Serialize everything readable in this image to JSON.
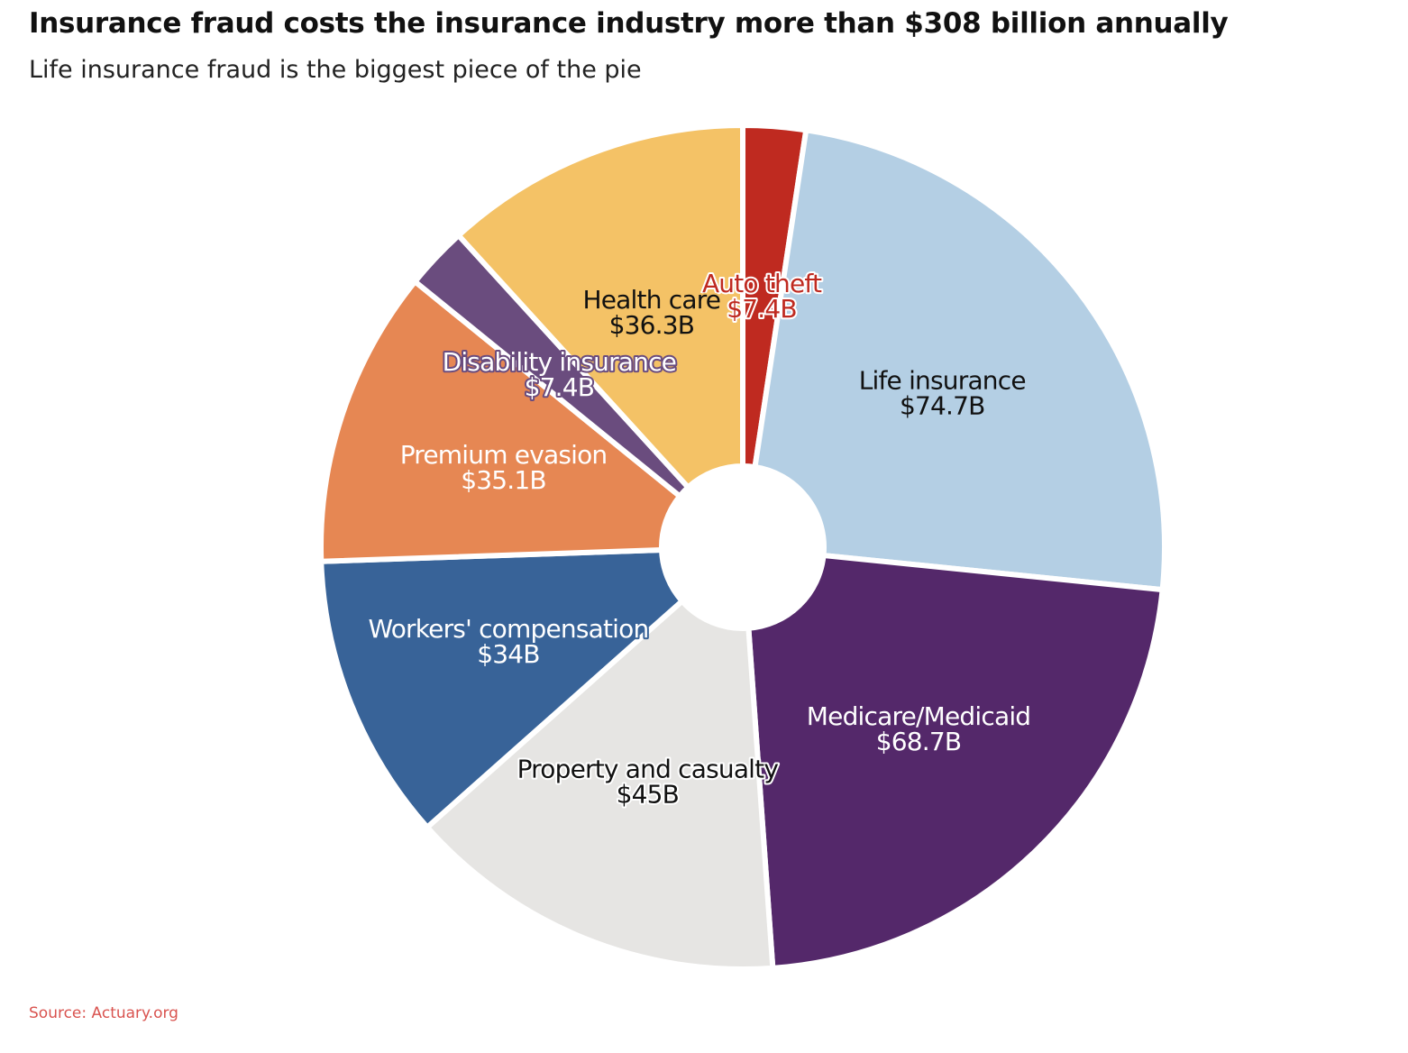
{
  "chart_data": {
    "type": "pie",
    "donut": true,
    "title": "Insurance fraud costs the insurance industry more than $308 billion annually",
    "subtitle": "Life insurance fraud is the biggest piece of the pie",
    "source": "Source: Actuary.org",
    "unit": "billion USD",
    "slices": [
      {
        "label": "Auto theft",
        "value": 7.4,
        "value_label": "$7.4B",
        "color": "#bf2a20",
        "text_color": "#bf2a20",
        "halo": "#ffffff"
      },
      {
        "label": "Life insurance",
        "value": 74.7,
        "value_label": "$74.7B",
        "color": "#b4cfe4",
        "text_color": "#111111",
        "halo": "#b4cfe4"
      },
      {
        "label": "Medicare/Medicaid",
        "value": 68.7,
        "value_label": "$68.7B",
        "color": "#54286a",
        "text_color": "#ffffff",
        "halo": "#54286a"
      },
      {
        "label": "Property and casualty",
        "value": 45,
        "value_label": "$45B",
        "color": "#e6e5e3",
        "text_color": "#111111",
        "halo": "#ffffff"
      },
      {
        "label": "Workers' compensation",
        "value": 34,
        "value_label": "$34B",
        "color": "#386398",
        "text_color": "#ffffff",
        "halo": "#386398"
      },
      {
        "label": "Premium evasion",
        "value": 35.1,
        "value_label": "$35.1B",
        "color": "#e68753",
        "text_color": "#ffffff",
        "halo": "#e68753"
      },
      {
        "label": "Disability insurance",
        "value": 7.4,
        "value_label": "$7.4B",
        "color": "#6a4c7e",
        "text_color": "#ffffff",
        "halo": "#6a4c7e"
      },
      {
        "label": "Health care",
        "value": 36.3,
        "value_label": "$36.3B",
        "color": "#f4c266",
        "text_color": "#111111",
        "halo": "#f4c266"
      }
    ]
  }
}
